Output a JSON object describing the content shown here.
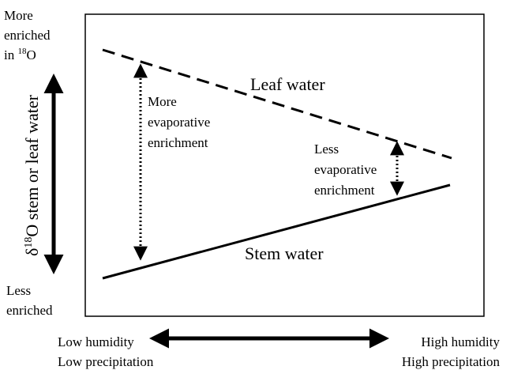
{
  "diagram": {
    "top_left": {
      "lines": [
        "More",
        "enriched"
      ],
      "prefix": "in ",
      "sup": "18",
      "element": "O"
    },
    "bottom_left": [
      "Less",
      "enriched"
    ],
    "y_label": {
      "symbol": "δ",
      "sup": "18",
      "rest": "O stem or leaf water"
    },
    "leaf_label": "Leaf water",
    "stem_label": "Stem water",
    "more_note": [
      "More",
      "evaporative",
      "enrichment"
    ],
    "less_note": [
      "Less",
      "evaporative",
      "enrichment"
    ],
    "x_left": [
      "Low humidity",
      "Low precipitation"
    ],
    "x_right": [
      "High humidity",
      "High precipitation"
    ]
  }
}
